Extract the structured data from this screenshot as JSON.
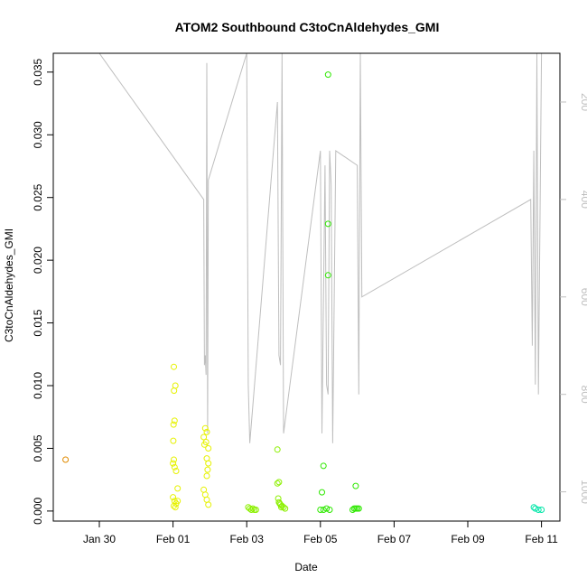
{
  "chart_data": {
    "type": "scatter",
    "title": "ATOM2 Southbound C3toCnAldehydes_GMI",
    "xlabel": "Date",
    "ylabel": "C3toCnAldehydes_GMI",
    "x_ticks": [
      "Jan 30",
      "Feb 01",
      "Feb 03",
      "Feb 05",
      "Feb 07",
      "Feb 09",
      "Feb 11"
    ],
    "y_ticks": [
      "0.000",
      "0.005",
      "0.010",
      "0.015",
      "0.020",
      "0.025",
      "0.030",
      "0.035"
    ],
    "y2_ticks": [
      "200",
      "400",
      "600",
      "800",
      "1000"
    ],
    "colors": {
      "line": "#bebebe",
      "axis": "#000000",
      "right_axis": "#bebebe"
    },
    "series": [
      {
        "color": "#e08a00",
        "points": [
          [
            "Jan 29 02:00",
            0.0041
          ]
        ]
      },
      {
        "color": "#e6f200",
        "points": [
          [
            "Feb 01 00:30",
            0.0115
          ],
          [
            "Feb 01 01:30",
            0.01
          ],
          [
            "Feb 01 00:40",
            0.0096
          ],
          [
            "Feb 01 01:00",
            0.0072
          ],
          [
            "Feb 01 00:20",
            0.0069
          ],
          [
            "Feb 01 00:10",
            0.0056
          ],
          [
            "Feb 01 00:30",
            0.0041
          ],
          [
            "Feb 01 00:00",
            0.0038
          ],
          [
            "Feb 01 01:00",
            0.0035
          ],
          [
            "Feb 01 02:00",
            0.0032
          ],
          [
            "Feb 01 03:00",
            0.0018
          ],
          [
            "Feb 01 00:00",
            0.0011
          ],
          [
            "Feb 01 01:00",
            0.0008
          ],
          [
            "Feb 01 02:00",
            0.0006
          ],
          [
            "Feb 01 00:30",
            0.0004
          ],
          [
            "Feb 01 01:30",
            0.0003
          ],
          [
            "Feb 01 03:00",
            0.0008
          ],
          [
            "Feb 01 21:00",
            0.0066
          ],
          [
            "Feb 01 22:00",
            0.0063
          ],
          [
            "Feb 01 20:00",
            0.0059
          ],
          [
            "Feb 01 21:30",
            0.0055
          ],
          [
            "Feb 01 20:30",
            0.0053
          ],
          [
            "Feb 01 23:00",
            0.005
          ],
          [
            "Feb 01 22:00",
            0.0042
          ],
          [
            "Feb 01 23:00",
            0.0038
          ],
          [
            "Feb 01 22:30",
            0.0033
          ],
          [
            "Feb 01 22:00",
            0.0028
          ],
          [
            "Feb 01 20:00",
            0.0017
          ],
          [
            "Feb 01 21:00",
            0.0013
          ],
          [
            "Feb 01 22:00",
            0.0009
          ],
          [
            "Feb 01 23:00",
            0.0005
          ]
        ]
      },
      {
        "color": "#8cf000",
        "points": [
          [
            "Feb 03 01:00",
            0.0003
          ],
          [
            "Feb 03 02:00",
            0.0002
          ],
          [
            "Feb 03 03:00",
            0.0001
          ],
          [
            "Feb 03 04:00",
            0.0002
          ],
          [
            "Feb 03 05:00",
            0.0001
          ],
          [
            "Feb 03 06:00",
            0.0001
          ],
          [
            "Feb 03 20:00",
            0.0049
          ],
          [
            "Feb 03 20:00",
            0.0022
          ],
          [
            "Feb 03 21:00",
            0.0023
          ],
          [
            "Feb 03 20:30",
            0.001
          ],
          [
            "Feb 03 21:00",
            0.0007
          ],
          [
            "Feb 03 22:00",
            0.0005
          ],
          [
            "Feb 03 23:00",
            0.0004
          ],
          [
            "Feb 04 00:00",
            0.0003
          ],
          [
            "Feb 04 01:00",
            0.0002
          ],
          [
            "Feb 03 21:30",
            0.0006
          ],
          [
            "Feb 03 22:30",
            0.0003
          ]
        ]
      },
      {
        "color": "#2ee800",
        "points": [
          [
            "Feb 05 05:00",
            0.0348
          ],
          [
            "Feb 05 05:00",
            0.0229
          ],
          [
            "Feb 05 05:00",
            0.0188
          ],
          [
            "Feb 05 02:00",
            0.0036
          ],
          [
            "Feb 05 01:00",
            0.0015
          ],
          [
            "Feb 05 00:00",
            0.0001
          ],
          [
            "Feb 05 02:00",
            0.0001
          ],
          [
            "Feb 05 04:00",
            0.0002
          ],
          [
            "Feb 05 06:00",
            0.0001
          ],
          [
            "Feb 05 23:00",
            0.002
          ],
          [
            "Feb 05 22:00",
            0.0002
          ],
          [
            "Feb 05 23:00",
            0.0002
          ],
          [
            "Feb 06 00:00",
            0.0002
          ],
          [
            "Feb 06 01:00",
            0.0002
          ],
          [
            "Feb 05 21:00",
            0.0001
          ]
        ]
      },
      {
        "color": "#00e6a8",
        "points": [
          [
            "Feb 10 19:00",
            0.0003
          ],
          [
            "Feb 10 20:00",
            0.0002
          ],
          [
            "Feb 10 22:00",
            0.0001
          ],
          [
            "Feb 11 00:00",
            0.0001
          ]
        ]
      }
    ],
    "pressure_line": {
      "axis": "right (inverted)",
      "points": [
        [
          "Jan 30 00:00",
          100
        ],
        [
          "Feb 01 20:00",
          400
        ],
        [
          "Feb 01 20:30",
          740
        ],
        [
          "Feb 01 21:00",
          720
        ],
        [
          "Feb 01 21:30",
          760
        ],
        [
          "Feb 01 22:00",
          120
        ],
        [
          "Feb 01 22:30",
          880
        ],
        [
          "Feb 01 23:00",
          360
        ],
        [
          "Feb 03 00:00",
          100
        ],
        [
          "Feb 03 01:00",
          780
        ],
        [
          "Feb 03 02:00",
          900
        ],
        [
          "Feb 03 20:00",
          200
        ],
        [
          "Feb 03 21:00",
          720
        ],
        [
          "Feb 03 22:00",
          740
        ],
        [
          "Feb 03 23:00",
          100
        ],
        [
          "Feb 04 00:00",
          880
        ],
        [
          "Feb 05 00:00",
          300
        ],
        [
          "Feb 05 01:00",
          880
        ],
        [
          "Feb 05 03:00",
          330
        ],
        [
          "Feb 05 04:00",
          780
        ],
        [
          "Feb 05 05:00",
          800
        ],
        [
          "Feb 05 06:00",
          300
        ],
        [
          "Feb 05 07:00",
          370
        ],
        [
          "Feb 05 08:00",
          900
        ],
        [
          "Feb 05 10:00",
          300
        ],
        [
          "Feb 06 00:00",
          330
        ],
        [
          "Feb 06 01:00",
          800
        ],
        [
          "Feb 06 02:00",
          100
        ],
        [
          "Feb 06 03:00",
          600
        ],
        [
          "Feb 10 17:00",
          400
        ],
        [
          "Feb 10 18:00",
          700
        ],
        [
          "Feb 10 19:00",
          300
        ],
        [
          "Feb 10 20:00",
          780
        ],
        [
          "Feb 10 21:00",
          100
        ],
        [
          "Feb 10 22:00",
          800
        ],
        [
          "Feb 11 00:00",
          100
        ]
      ]
    },
    "x_range": [
      "Jan 28 18:00",
      "Feb 11 12:00"
    ],
    "y_range": [
      -0.0008,
      0.0365
    ],
    "y2_range": [
      1060,
      100
    ],
    "grid": false,
    "legend": "none"
  }
}
